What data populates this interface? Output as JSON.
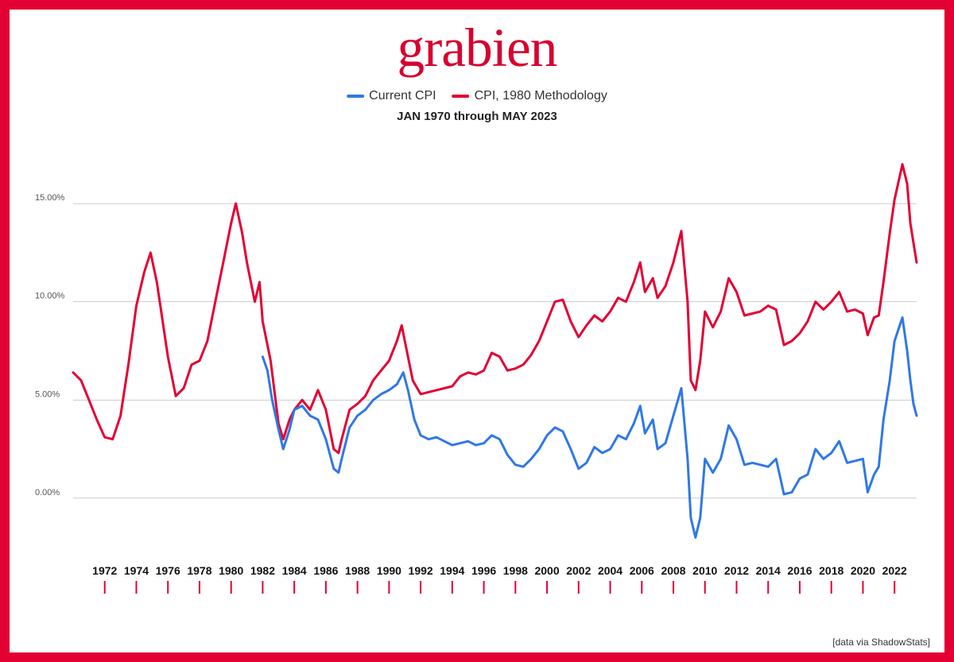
{
  "frame": {
    "border_color": "#e30033"
  },
  "logo": {
    "text": "grabien",
    "color": "#d8002f",
    "fontsize_pt": 52
  },
  "legend": {
    "items": [
      {
        "label": "Current CPI",
        "color": "#2f78e6"
      },
      {
        "label": "CPI, 1980 Methodology",
        "color": "#e30033"
      }
    ]
  },
  "subtitle": "JAN 1970 through MAY 2023",
  "attribution": "[data via ShadowStats]",
  "chart": {
    "type": "line",
    "background_color": "#ffffff",
    "grid_color": "#b0b0b0",
    "x": {
      "min": 1970.0,
      "max": 2023.4,
      "ticks": [
        1972,
        1974,
        1976,
        1978,
        1980,
        1982,
        1984,
        1986,
        1988,
        1990,
        1992,
        1994,
        1996,
        1998,
        2000,
        2002,
        2004,
        2006,
        2008,
        2010,
        2012,
        2014,
        2016,
        2018,
        2020,
        2022
      ],
      "tick_mark_color": "#e30033",
      "label_fontsize_pt": 14
    },
    "y": {
      "min": -3.0,
      "max": 18.0,
      "gridlines": [
        0,
        5,
        10,
        15
      ],
      "tick_labels": {
        "0": "0.00%",
        "5": "5.00%",
        "10": "10.00%",
        "15": "15.00%"
      },
      "label_fontsize_pt": 11
    },
    "series": [
      {
        "name": "CPI, 1980 Methodology",
        "color": "#e30033",
        "line_width": 3,
        "data": [
          [
            1970.0,
            6.4
          ],
          [
            1970.5,
            6.0
          ],
          [
            1971.0,
            5.0
          ],
          [
            1971.5,
            4.0
          ],
          [
            1972.0,
            3.1
          ],
          [
            1972.5,
            3.0
          ],
          [
            1973.0,
            4.2
          ],
          [
            1973.5,
            6.8
          ],
          [
            1974.0,
            9.8
          ],
          [
            1974.5,
            11.5
          ],
          [
            1974.9,
            12.5
          ],
          [
            1975.3,
            11.0
          ],
          [
            1976.0,
            7.2
          ],
          [
            1976.5,
            5.2
          ],
          [
            1977.0,
            5.6
          ],
          [
            1977.5,
            6.8
          ],
          [
            1978.0,
            7.0
          ],
          [
            1978.5,
            8.0
          ],
          [
            1979.0,
            10.0
          ],
          [
            1979.5,
            12.0
          ],
          [
            1980.0,
            14.0
          ],
          [
            1980.3,
            15.0
          ],
          [
            1980.7,
            13.5
          ],
          [
            1981.0,
            12.0
          ],
          [
            1981.5,
            10.0
          ],
          [
            1981.8,
            11.0
          ],
          [
            1982.0,
            9.0
          ],
          [
            1982.5,
            7.0
          ],
          [
            1983.0,
            3.8
          ],
          [
            1983.3,
            3.0
          ],
          [
            1983.7,
            4.0
          ],
          [
            1984.0,
            4.5
          ],
          [
            1984.5,
            5.0
          ],
          [
            1985.0,
            4.5
          ],
          [
            1985.5,
            5.5
          ],
          [
            1986.0,
            4.5
          ],
          [
            1986.5,
            2.5
          ],
          [
            1986.8,
            2.3
          ],
          [
            1987.0,
            3.0
          ],
          [
            1987.5,
            4.5
          ],
          [
            1988.0,
            4.8
          ],
          [
            1988.5,
            5.2
          ],
          [
            1989.0,
            6.0
          ],
          [
            1989.5,
            6.5
          ],
          [
            1990.0,
            7.0
          ],
          [
            1990.5,
            8.0
          ],
          [
            1990.8,
            8.8
          ],
          [
            1991.0,
            8.0
          ],
          [
            1991.5,
            6.0
          ],
          [
            1992.0,
            5.3
          ],
          [
            1992.5,
            5.4
          ],
          [
            1993.0,
            5.5
          ],
          [
            1993.5,
            5.6
          ],
          [
            1994.0,
            5.7
          ],
          [
            1994.5,
            6.2
          ],
          [
            1995.0,
            6.4
          ],
          [
            1995.5,
            6.3
          ],
          [
            1996.0,
            6.5
          ],
          [
            1996.5,
            7.4
          ],
          [
            1997.0,
            7.2
          ],
          [
            1997.5,
            6.5
          ],
          [
            1998.0,
            6.6
          ],
          [
            1998.5,
            6.8
          ],
          [
            1999.0,
            7.3
          ],
          [
            1999.5,
            8.0
          ],
          [
            2000.0,
            9.0
          ],
          [
            2000.5,
            10.0
          ],
          [
            2001.0,
            10.1
          ],
          [
            2001.5,
            9.0
          ],
          [
            2002.0,
            8.2
          ],
          [
            2002.5,
            8.8
          ],
          [
            2003.0,
            9.3
          ],
          [
            2003.5,
            9.0
          ],
          [
            2004.0,
            9.5
          ],
          [
            2004.5,
            10.2
          ],
          [
            2005.0,
            10.0
          ],
          [
            2005.5,
            11.0
          ],
          [
            2005.9,
            12.0
          ],
          [
            2006.2,
            10.5
          ],
          [
            2006.7,
            11.2
          ],
          [
            2007.0,
            10.2
          ],
          [
            2007.5,
            10.8
          ],
          [
            2008.0,
            12.0
          ],
          [
            2008.5,
            13.6
          ],
          [
            2008.9,
            10.0
          ],
          [
            2009.1,
            6.0
          ],
          [
            2009.4,
            5.5
          ],
          [
            2009.7,
            7.0
          ],
          [
            2010.0,
            9.5
          ],
          [
            2010.5,
            8.7
          ],
          [
            2011.0,
            9.5
          ],
          [
            2011.5,
            11.2
          ],
          [
            2012.0,
            10.5
          ],
          [
            2012.5,
            9.3
          ],
          [
            2013.0,
            9.4
          ],
          [
            2013.5,
            9.5
          ],
          [
            2014.0,
            9.8
          ],
          [
            2014.5,
            9.6
          ],
          [
            2015.0,
            7.8
          ],
          [
            2015.5,
            8.0
          ],
          [
            2016.0,
            8.4
          ],
          [
            2016.5,
            9.0
          ],
          [
            2017.0,
            10.0
          ],
          [
            2017.5,
            9.6
          ],
          [
            2018.0,
            10.0
          ],
          [
            2018.5,
            10.5
          ],
          [
            2019.0,
            9.5
          ],
          [
            2019.5,
            9.6
          ],
          [
            2020.0,
            9.4
          ],
          [
            2020.3,
            8.3
          ],
          [
            2020.7,
            9.2
          ],
          [
            2021.0,
            9.3
          ],
          [
            2021.3,
            11.0
          ],
          [
            2021.7,
            13.5
          ],
          [
            2022.0,
            15.2
          ],
          [
            2022.5,
            17.0
          ],
          [
            2022.8,
            16.0
          ],
          [
            2023.0,
            14.0
          ],
          [
            2023.2,
            13.0
          ],
          [
            2023.4,
            12.0
          ]
        ]
      },
      {
        "name": "Current CPI",
        "color": "#2f78e6",
        "line_width": 3,
        "data": [
          [
            1982.0,
            7.2
          ],
          [
            1982.3,
            6.5
          ],
          [
            1982.6,
            5.0
          ],
          [
            1983.0,
            3.5
          ],
          [
            1983.3,
            2.5
          ],
          [
            1983.7,
            3.5
          ],
          [
            1984.0,
            4.5
          ],
          [
            1984.5,
            4.7
          ],
          [
            1985.0,
            4.2
          ],
          [
            1985.5,
            4.0
          ],
          [
            1986.0,
            3.0
          ],
          [
            1986.5,
            1.5
          ],
          [
            1986.8,
            1.3
          ],
          [
            1987.0,
            2.0
          ],
          [
            1987.5,
            3.6
          ],
          [
            1988.0,
            4.2
          ],
          [
            1988.5,
            4.5
          ],
          [
            1989.0,
            5.0
          ],
          [
            1989.5,
            5.3
          ],
          [
            1990.0,
            5.5
          ],
          [
            1990.5,
            5.8
          ],
          [
            1990.9,
            6.4
          ],
          [
            1991.2,
            5.5
          ],
          [
            1991.6,
            4.0
          ],
          [
            1992.0,
            3.2
          ],
          [
            1992.5,
            3.0
          ],
          [
            1993.0,
            3.1
          ],
          [
            1993.5,
            2.9
          ],
          [
            1994.0,
            2.7
          ],
          [
            1994.5,
            2.8
          ],
          [
            1995.0,
            2.9
          ],
          [
            1995.5,
            2.7
          ],
          [
            1996.0,
            2.8
          ],
          [
            1996.5,
            3.2
          ],
          [
            1997.0,
            3.0
          ],
          [
            1997.5,
            2.2
          ],
          [
            1998.0,
            1.7
          ],
          [
            1998.5,
            1.6
          ],
          [
            1999.0,
            2.0
          ],
          [
            1999.5,
            2.5
          ],
          [
            2000.0,
            3.2
          ],
          [
            2000.5,
            3.6
          ],
          [
            2001.0,
            3.4
          ],
          [
            2001.5,
            2.5
          ],
          [
            2002.0,
            1.5
          ],
          [
            2002.5,
            1.8
          ],
          [
            2003.0,
            2.6
          ],
          [
            2003.5,
            2.3
          ],
          [
            2004.0,
            2.5
          ],
          [
            2004.5,
            3.2
          ],
          [
            2005.0,
            3.0
          ],
          [
            2005.5,
            3.8
          ],
          [
            2005.9,
            4.7
          ],
          [
            2006.2,
            3.3
          ],
          [
            2006.7,
            4.0
          ],
          [
            2007.0,
            2.5
          ],
          [
            2007.5,
            2.8
          ],
          [
            2008.0,
            4.2
          ],
          [
            2008.5,
            5.6
          ],
          [
            2008.9,
            2.0
          ],
          [
            2009.1,
            -1.0
          ],
          [
            2009.4,
            -2.0
          ],
          [
            2009.7,
            -1.0
          ],
          [
            2010.0,
            2.0
          ],
          [
            2010.5,
            1.3
          ],
          [
            2011.0,
            2.0
          ],
          [
            2011.5,
            3.7
          ],
          [
            2012.0,
            3.0
          ],
          [
            2012.5,
            1.7
          ],
          [
            2013.0,
            1.8
          ],
          [
            2013.5,
            1.7
          ],
          [
            2014.0,
            1.6
          ],
          [
            2014.5,
            2.0
          ],
          [
            2015.0,
            0.2
          ],
          [
            2015.5,
            0.3
          ],
          [
            2016.0,
            1.0
          ],
          [
            2016.5,
            1.2
          ],
          [
            2017.0,
            2.5
          ],
          [
            2017.5,
            2.0
          ],
          [
            2018.0,
            2.3
          ],
          [
            2018.5,
            2.9
          ],
          [
            2019.0,
            1.8
          ],
          [
            2019.5,
            1.9
          ],
          [
            2020.0,
            2.0
          ],
          [
            2020.3,
            0.3
          ],
          [
            2020.7,
            1.2
          ],
          [
            2021.0,
            1.6
          ],
          [
            2021.3,
            4.0
          ],
          [
            2021.7,
            6.0
          ],
          [
            2022.0,
            8.0
          ],
          [
            2022.5,
            9.2
          ],
          [
            2022.8,
            7.5
          ],
          [
            2023.0,
            6.0
          ],
          [
            2023.2,
            4.8
          ],
          [
            2023.4,
            4.2
          ]
        ]
      }
    ]
  }
}
